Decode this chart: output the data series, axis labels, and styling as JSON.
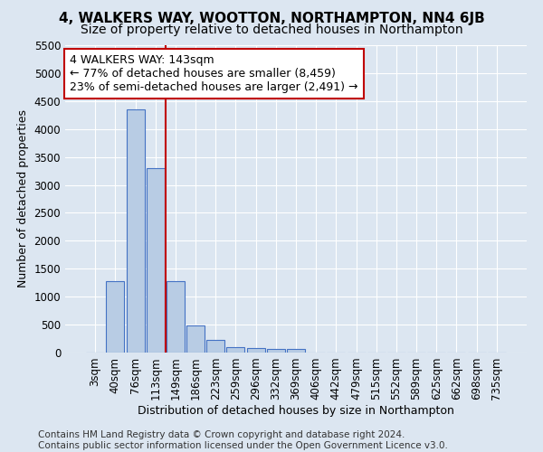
{
  "title": "4, WALKERS WAY, WOOTTON, NORTHAMPTON, NN4 6JB",
  "subtitle": "Size of property relative to detached houses in Northampton",
  "xlabel": "Distribution of detached houses by size in Northampton",
  "ylabel": "Number of detached properties",
  "footer_line1": "Contains HM Land Registry data © Crown copyright and database right 2024.",
  "footer_line2": "Contains public sector information licensed under the Open Government Licence v3.0.",
  "annotation_title": "4 WALKERS WAY: 143sqm",
  "annotation_line2": "← 77% of detached houses are smaller (8,459)",
  "annotation_line3": "23% of semi-detached houses are larger (2,491) →",
  "bar_labels": [
    "3sqm",
    "40sqm",
    "76sqm",
    "113sqm",
    "149sqm",
    "186sqm",
    "223sqm",
    "259sqm",
    "296sqm",
    "332sqm",
    "369sqm",
    "406sqm",
    "442sqm",
    "479sqm",
    "515sqm",
    "552sqm",
    "589sqm",
    "625sqm",
    "662sqm",
    "698sqm",
    "735sqm"
  ],
  "bar_values": [
    0,
    1270,
    4350,
    3300,
    1270,
    490,
    230,
    100,
    80,
    60,
    60,
    0,
    0,
    0,
    0,
    0,
    0,
    0,
    0,
    0,
    0
  ],
  "bar_color": "#b8cce4",
  "bar_edge_color": "#4472c4",
  "vline_color": "#c00000",
  "background_color": "#dce6f1",
  "ylim": [
    0,
    5500
  ],
  "yticks": [
    0,
    500,
    1000,
    1500,
    2000,
    2500,
    3000,
    3500,
    4000,
    4500,
    5000,
    5500
  ],
  "annotation_box_edgecolor": "#c00000",
  "annotation_box_facecolor": "#ffffff",
  "title_fontsize": 11,
  "subtitle_fontsize": 10,
  "axis_label_fontsize": 9,
  "tick_fontsize": 8.5,
  "footer_fontsize": 7.5,
  "annotation_fontsize": 9
}
